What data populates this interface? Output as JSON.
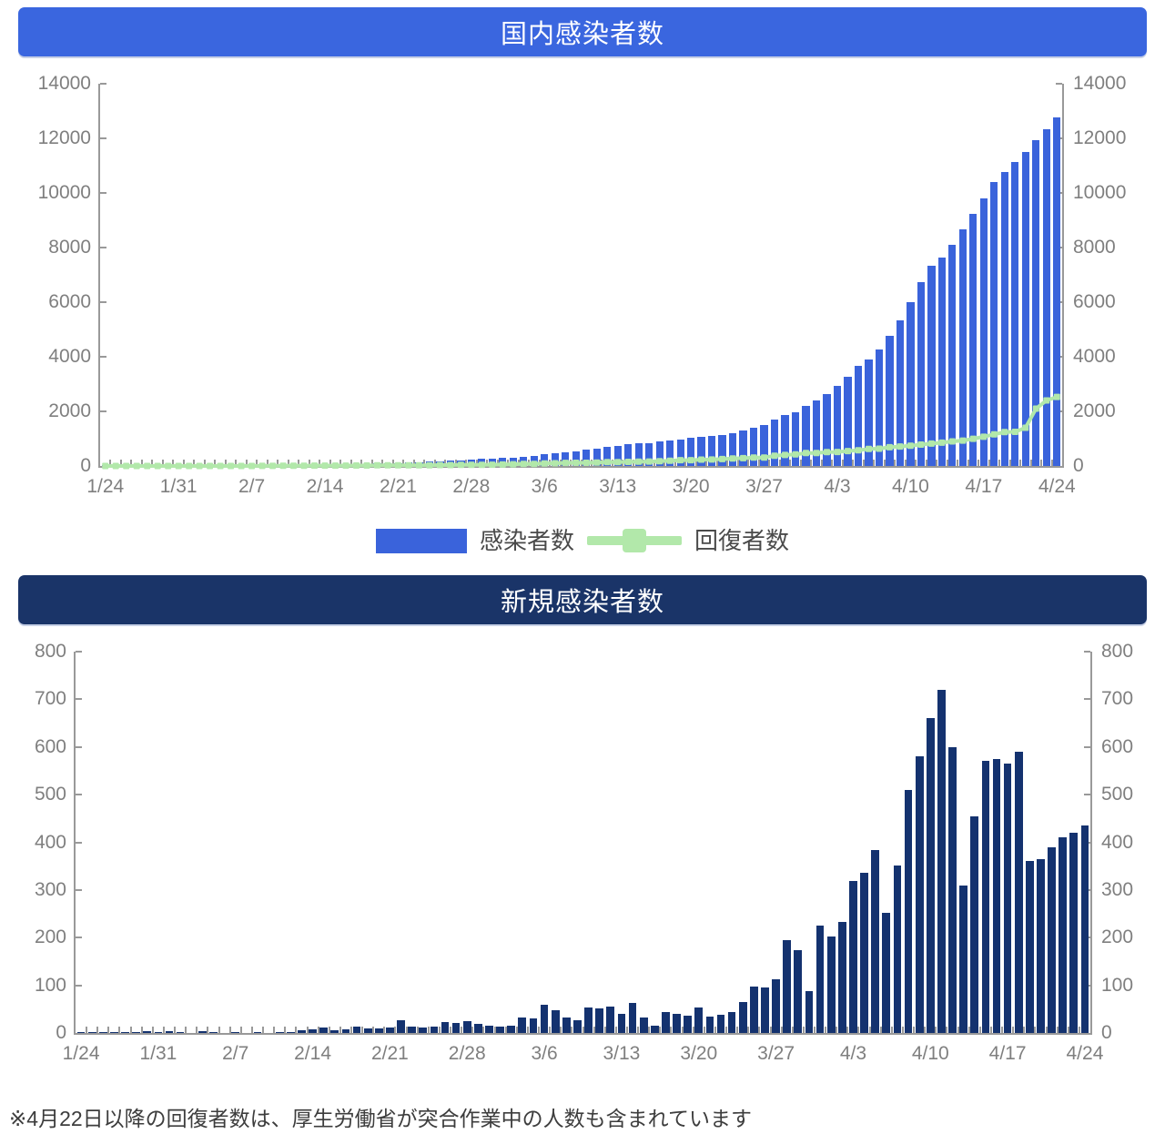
{
  "note": "※4月22日以降の回復者数は、厚生労働省が突合作業中の人数も含まれています",
  "colors": {
    "title1_bg": "#3A66DF",
    "title2_bg": "#1A3468",
    "bar_blue": "#3A63DB",
    "bar_navy": "#14326F",
    "line_green": "#B2E8AA",
    "axis_gray": "#999999",
    "label_gray": "#7f7f7f"
  },
  "chart_data": [
    {
      "type": "bar",
      "title": "国内感染者数",
      "xlabel": "",
      "ylabel": "",
      "ylim": [
        0,
        14000
      ],
      "yticks": [
        0,
        2000,
        4000,
        6000,
        8000,
        10000,
        12000,
        14000
      ],
      "grid": false,
      "legend_position": "bottom",
      "n_points": 92,
      "x_start": "1/24",
      "x_end": "4/24",
      "x_tick_indices": [
        0,
        7,
        14,
        21,
        28,
        35,
        42,
        49,
        56,
        63,
        70,
        77,
        84,
        91
      ],
      "x_tick_labels": [
        "1/24",
        "1/31",
        "2/7",
        "2/14",
        "2/21",
        "2/28",
        "3/6",
        "3/13",
        "3/20",
        "3/27",
        "4/3",
        "4/10",
        "4/17",
        "4/24"
      ],
      "series": [
        {
          "name": "感染者数",
          "type": "bar",
          "color": "#3A63DB",
          "values": [
            1,
            2,
            3,
            4,
            6,
            7,
            10,
            12,
            15,
            16,
            16,
            20,
            22,
            22,
            23,
            23,
            25,
            25,
            26,
            27,
            32,
            40,
            52,
            58,
            65,
            78,
            87,
            96,
            107,
            134,
            147,
            159,
            172,
            195,
            216,
            240,
            260,
            275,
            289,
            305,
            338,
            369,
            428,
            475,
            508,
            534,
            588,
            640,
            695,
            735,
            798,
            831,
            846,
            890,
            930,
            966,
            1019,
            1053,
            1092,
            1135,
            1200,
            1298,
            1394,
            1506,
            1700,
            1873,
            1960,
            2185,
            2387,
            2620,
            2938,
            3274,
            3657,
            3909,
            4260,
            4770,
            5350,
            6010,
            6730,
            7330,
            7640,
            8095,
            8665,
            9240,
            9805,
            10395,
            10755,
            11120,
            11510,
            11920,
            12340,
            12775
          ]
        },
        {
          "name": "回復者数",
          "type": "line",
          "color": "#B2E8AA",
          "values": [
            0,
            0,
            0,
            0,
            0,
            1,
            1,
            1,
            1,
            1,
            1,
            1,
            1,
            1,
            1,
            4,
            4,
            9,
            9,
            9,
            12,
            12,
            12,
            12,
            18,
            18,
            22,
            22,
            22,
            22,
            22,
            27,
            32,
            32,
            43,
            43,
            43,
            48,
            55,
            65,
            76,
            76,
            94,
            101,
            112,
            118,
            118,
            124,
            140,
            144,
            150,
            159,
            165,
            178,
            191,
            215,
            215,
            232,
            235,
            252,
            272,
            285,
            310,
            310,
            372,
            404,
            424,
            472,
            472,
            510,
            514,
            545,
            575,
            622,
            632,
            685,
            714,
            744,
            784,
            820,
            853,
            901,
            930,
            997,
            1069,
            1159,
            1239,
            1250,
            1399,
            2100,
            2400,
            2530
          ]
        }
      ]
    },
    {
      "type": "bar",
      "title": "新規感染者数",
      "xlabel": "",
      "ylabel": "",
      "ylim": [
        0,
        800
      ],
      "yticks": [
        0,
        100,
        200,
        300,
        400,
        500,
        600,
        700,
        800
      ],
      "grid": false,
      "legend_position": "none",
      "n_points": 92,
      "x_start": "1/24",
      "x_end": "4/24",
      "x_tick_indices": [
        0,
        7,
        14,
        21,
        28,
        35,
        42,
        49,
        56,
        63,
        70,
        77,
        84,
        91
      ],
      "x_tick_labels": [
        "1/24",
        "1/31",
        "2/7",
        "2/14",
        "2/21",
        "2/28",
        "3/6",
        "3/13",
        "3/20",
        "3/27",
        "4/3",
        "4/10",
        "4/17",
        "4/24"
      ],
      "series": [
        {
          "name": "新規感染者数",
          "type": "bar",
          "color": "#14326F",
          "values": [
            1,
            1,
            1,
            1,
            2,
            1,
            3,
            2,
            3,
            1,
            0,
            4,
            2,
            0,
            1,
            0,
            2,
            0,
            1,
            1,
            5,
            8,
            12,
            6,
            7,
            13,
            9,
            9,
            11,
            27,
            13,
            12,
            13,
            23,
            21,
            24,
            20,
            15,
            14,
            16,
            33,
            31,
            59,
            47,
            33,
            26,
            54,
            52,
            55,
            40,
            63,
            33,
            15,
            44,
            40,
            36,
            53,
            34,
            39,
            43,
            65,
            98,
            96,
            112,
            194,
            173,
            87,
            225,
            202,
            233,
            318,
            336,
            383,
            252,
            351,
            510,
            580,
            660,
            720,
            600,
            310,
            455,
            570,
            575,
            565,
            590,
            360,
            365,
            390,
            410,
            420,
            435
          ]
        }
      ]
    }
  ]
}
